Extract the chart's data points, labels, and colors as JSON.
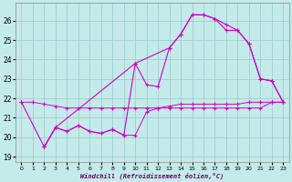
{
  "xlabel": "Windchill (Refroidissement éolien,°C)",
  "xlim": [
    -0.5,
    23.5
  ],
  "ylim": [
    18.7,
    26.9
  ],
  "yticks": [
    19,
    20,
    21,
    22,
    23,
    24,
    25,
    26
  ],
  "xticks": [
    0,
    1,
    2,
    3,
    4,
    5,
    6,
    7,
    8,
    9,
    10,
    11,
    12,
    13,
    14,
    15,
    16,
    17,
    18,
    19,
    20,
    21,
    22,
    23
  ],
  "bg_color": "#c5eaea",
  "grid_color": "#9ecece",
  "line_color": "#cc00cc",
  "series": [
    {
      "x": [
        0,
        1,
        2,
        3,
        4,
        5,
        6,
        7,
        8,
        9,
        10,
        11,
        12,
        13,
        14,
        15,
        16,
        17,
        18,
        19,
        20,
        21,
        22,
        23
      ],
      "y": [
        21.8,
        21.8,
        21.7,
        21.6,
        21.5,
        21.5,
        21.5,
        21.5,
        21.5,
        21.5,
        21.5,
        21.5,
        21.5,
        21.5,
        21.5,
        21.5,
        21.5,
        21.5,
        21.5,
        21.5,
        21.5,
        21.5,
        21.8,
        21.8
      ]
    },
    {
      "x": [
        2,
        3,
        4,
        5,
        6,
        7,
        8,
        9,
        10,
        11,
        12,
        13,
        14,
        15,
        16,
        17,
        18,
        19,
        20,
        21,
        22,
        23
      ],
      "y": [
        19.5,
        20.5,
        20.3,
        20.6,
        20.3,
        20.2,
        20.4,
        20.1,
        20.1,
        21.3,
        21.5,
        21.6,
        21.7,
        21.7,
        21.7,
        21.7,
        21.7,
        21.7,
        21.8,
        21.8,
        21.8,
        21.8
      ]
    },
    {
      "x": [
        2,
        3,
        4,
        5,
        6,
        7,
        8,
        9,
        10,
        11,
        12,
        13,
        14,
        15,
        16,
        17,
        18,
        19,
        20,
        21,
        22,
        23
      ],
      "y": [
        19.5,
        20.5,
        20.3,
        20.6,
        20.3,
        20.2,
        20.4,
        20.1,
        23.8,
        22.7,
        22.6,
        24.6,
        25.3,
        26.3,
        26.3,
        26.1,
        25.8,
        25.5,
        24.8,
        23.0,
        22.9,
        21.8
      ]
    },
    {
      "x": [
        0,
        2,
        3,
        10,
        13,
        14,
        15,
        16,
        17,
        18,
        19,
        20,
        21,
        22,
        23
      ],
      "y": [
        21.8,
        19.5,
        20.5,
        23.8,
        24.6,
        25.3,
        26.3,
        26.3,
        26.1,
        25.5,
        25.5,
        24.8,
        23.0,
        22.9,
        21.8
      ]
    }
  ]
}
